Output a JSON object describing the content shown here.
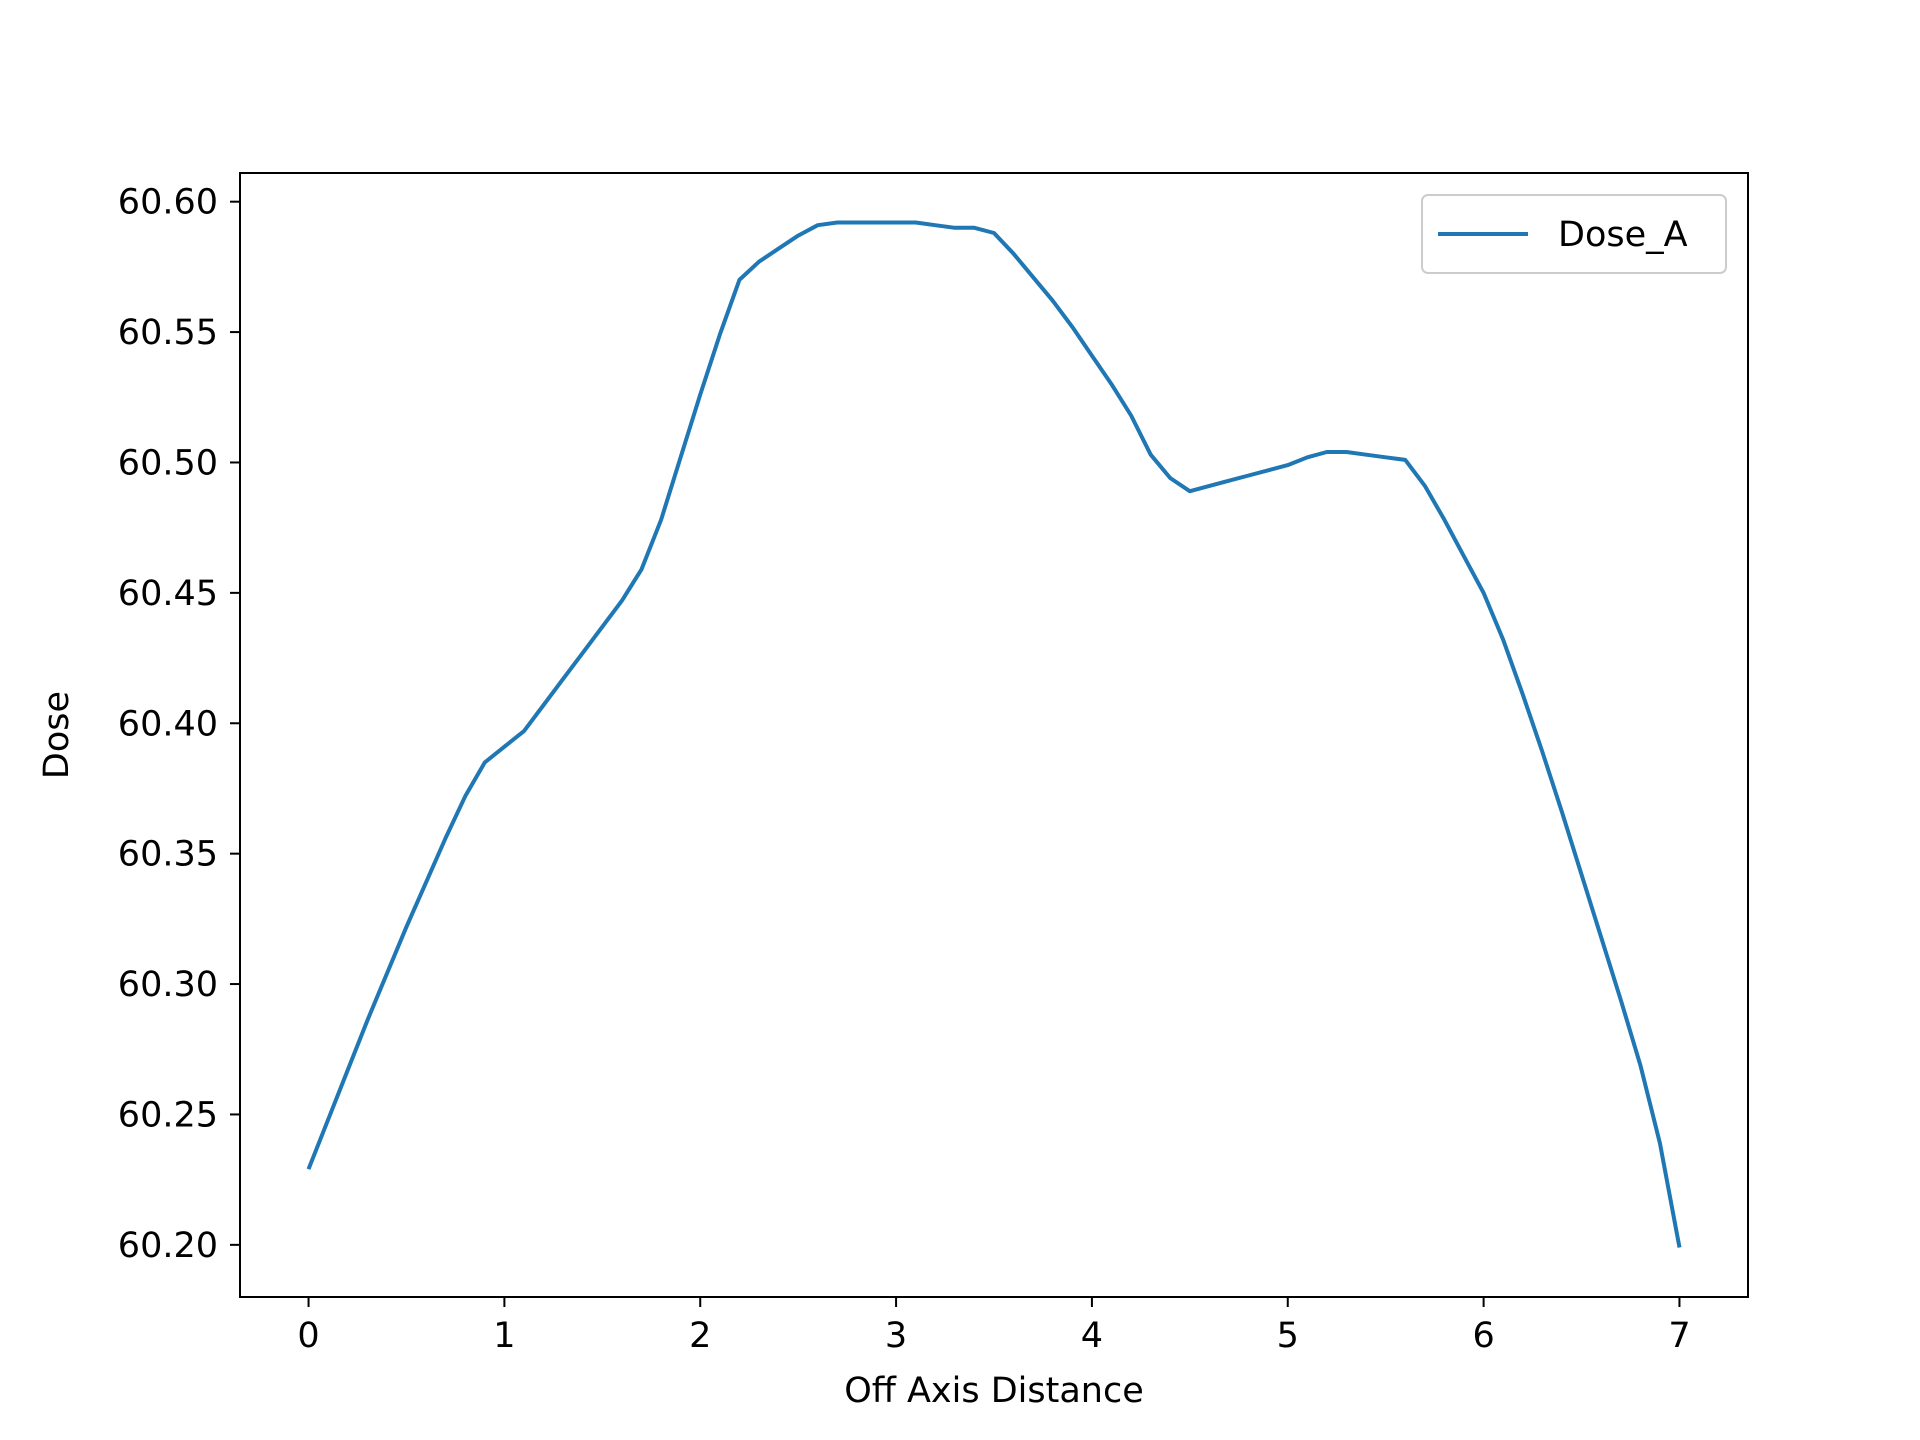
{
  "chart_data": {
    "type": "line",
    "xlabel": "Off Axis Distance",
    "ylabel": "Dose",
    "xlim": [
      -0.35,
      7.35
    ],
    "ylim": [
      60.18,
      60.611
    ],
    "x_ticks": [
      0,
      1,
      2,
      3,
      4,
      5,
      6,
      7
    ],
    "x_tick_labels": [
      "0",
      "1",
      "2",
      "3",
      "4",
      "5",
      "6",
      "7"
    ],
    "y_ticks": [
      60.2,
      60.25,
      60.3,
      60.35,
      60.4,
      60.45,
      60.5,
      60.55,
      60.6
    ],
    "y_tick_labels": [
      "60.20",
      "60.25",
      "60.30",
      "60.35",
      "60.40",
      "60.45",
      "60.50",
      "60.55",
      "60.60"
    ],
    "grid": false,
    "legend_position": "top-right",
    "series_color": "#1f77b4",
    "series": [
      {
        "name": "Dose_A",
        "x": [
          0,
          0.1,
          0.2,
          0.3,
          0.4,
          0.5,
          0.6,
          0.7,
          0.8,
          0.9,
          1.0,
          1.1,
          1.2,
          1.3,
          1.4,
          1.5,
          1.6,
          1.7,
          1.8,
          1.9,
          2.0,
          2.1,
          2.2,
          2.3,
          2.4,
          2.5,
          2.6,
          2.7,
          2.8,
          2.9,
          3.0,
          3.1,
          3.2,
          3.3,
          3.4,
          3.5,
          3.6,
          3.7,
          3.8,
          3.9,
          4.0,
          4.1,
          4.2,
          4.3,
          4.4,
          4.5,
          4.6,
          4.7,
          4.8,
          4.9,
          5.0,
          5.1,
          5.2,
          5.3,
          5.4,
          5.5,
          5.6,
          5.7,
          5.8,
          5.9,
          6.0,
          6.1,
          6.2,
          6.3,
          6.4,
          6.5,
          6.6,
          6.7,
          6.8,
          6.9,
          7.0
        ],
        "y": [
          60.229,
          60.248,
          60.267,
          60.286,
          60.304,
          60.322,
          60.339,
          60.356,
          60.372,
          60.385,
          60.391,
          60.397,
          60.407,
          60.417,
          60.427,
          60.437,
          60.447,
          60.459,
          60.478,
          60.502,
          60.526,
          60.549,
          60.57,
          60.577,
          60.582,
          60.587,
          60.591,
          60.592,
          60.592,
          60.592,
          60.592,
          60.592,
          60.591,
          60.59,
          60.59,
          60.588,
          60.58,
          60.571,
          60.562,
          60.552,
          60.541,
          60.53,
          60.518,
          60.503,
          60.494,
          60.489,
          60.491,
          60.493,
          60.495,
          60.497,
          60.499,
          60.502,
          60.504,
          60.504,
          60.503,
          60.502,
          60.501,
          60.491,
          60.478,
          60.464,
          60.45,
          60.432,
          60.411,
          60.389,
          60.366,
          60.342,
          60.318,
          60.294,
          60.269,
          60.239,
          60.199
        ]
      }
    ]
  }
}
